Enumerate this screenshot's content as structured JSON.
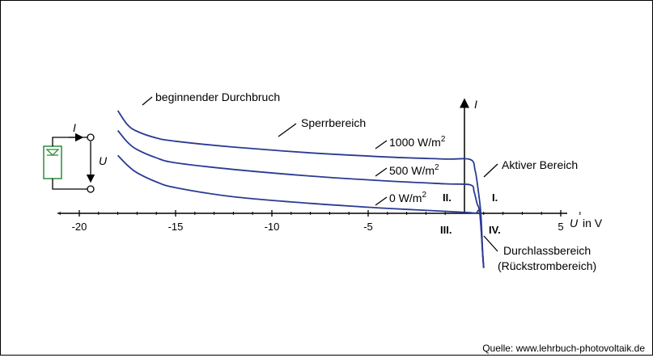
{
  "chart_data": {
    "type": "line",
    "xlabel_symbol": "U",
    "xlabel_unit": "in V",
    "ylabel_symbol": "I",
    "xlim": [
      -21,
      6
    ],
    "x_ticks": [
      -20,
      -15,
      -10,
      -5,
      5
    ],
    "series": [
      {
        "name": "1000 W/m²",
        "x": [
          -18,
          -17.5,
          -17,
          -16,
          -15,
          -12,
          -8,
          -4,
          -1,
          0.3,
          0.55,
          0.7,
          0.85,
          0.95,
          1.0
        ],
        "y": [
          6.2,
          5.35,
          4.95,
          4.55,
          4.35,
          4.0,
          3.65,
          3.4,
          3.28,
          3.25,
          2.6,
          1.5,
          0,
          -2.5,
          -3.3
        ]
      },
      {
        "name": "500 W/m²",
        "x": [
          -18,
          -17.5,
          -17,
          -16,
          -15,
          -12,
          -8,
          -4,
          -1,
          0.3,
          0.5,
          0.65,
          0.8,
          0.95,
          1.0
        ],
        "y": [
          5.0,
          4.3,
          3.85,
          3.35,
          3.05,
          2.65,
          2.25,
          1.95,
          1.78,
          1.72,
          1.3,
          0.6,
          0,
          -2.5,
          -3.3
        ]
      },
      {
        "name": "0 W/m²",
        "x": [
          -18,
          -17.5,
          -17,
          -16,
          -15,
          -12,
          -8,
          -4,
          -1,
          0.2,
          0.4,
          0.6,
          0.8,
          0.95,
          1.0
        ],
        "y": [
          3.5,
          2.9,
          2.45,
          1.9,
          1.55,
          1.0,
          0.6,
          0.3,
          0.12,
          0.05,
          0.03,
          0.01,
          0,
          -2.5,
          -3.3
        ]
      }
    ],
    "annotations": {
      "breakdown": "beginnender Durchbruch",
      "reverse": "Sperrbereich",
      "active": "Aktiver Bereich",
      "forward": "Durchlassbereich",
      "forward_sub": "(Rückstrombereich)",
      "label_1000": "1000 W/m",
      "label_500": "500 W/m",
      "label_0": "0 W/m",
      "sup2": "2"
    },
    "quadrants": [
      "I.",
      "II.",
      "III.",
      "IV."
    ],
    "colors": {
      "curve": "#2b3a93",
      "axis": "#000000",
      "cell": "#2e8b3e"
    }
  },
  "inset": {
    "current_symbol": "I",
    "voltage_symbol": "U"
  },
  "source": "Quelle: www.lehrbuch-photovoltaik.de"
}
